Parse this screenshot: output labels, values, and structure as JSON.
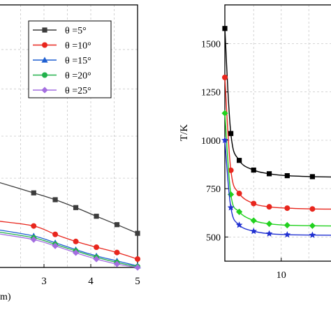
{
  "chart_data": [
    {
      "type": "line",
      "title": "",
      "xlabel": "m)",
      "ylabel": "",
      "xlim": [
        2.0,
        5.0
      ],
      "ylim": [
        0,
        100
      ],
      "x_ticks": [
        3,
        4,
        5
      ],
      "y_ticks": [],
      "grid": true,
      "legend_position": "top-right",
      "series": [
        {
          "name": "θ =5°",
          "color": "#3c3c3c",
          "marker": "square",
          "x": [
            2.0,
            2.78,
            3.24,
            3.68,
            4.12,
            4.56,
            5.0
          ],
          "y": [
            32.6,
            28.4,
            25.8,
            22.8,
            19.5,
            16.3,
            13.0
          ]
        },
        {
          "name": "θ =10°",
          "color": "#e8261d",
          "marker": "circle",
          "x": [
            2.0,
            2.78,
            3.24,
            3.68,
            4.12,
            4.56,
            5.0
          ],
          "y": [
            17.7,
            15.8,
            12.6,
            9.9,
            7.7,
            5.7,
            3.2
          ]
        },
        {
          "name": "θ =15°",
          "color": "#1f5fd1",
          "marker": "triangle",
          "x": [
            2.0,
            2.78,
            3.24,
            3.68,
            4.12,
            4.56,
            5.0
          ],
          "y": [
            14.4,
            12.0,
            9.4,
            6.8,
            4.4,
            2.5,
            0.6
          ]
        },
        {
          "name": "θ =20°",
          "color": "#22b14c",
          "marker": "circle",
          "x": [
            2.0,
            2.78,
            3.24,
            3.68,
            4.12,
            4.56,
            5.0
          ],
          "y": [
            13.6,
            11.3,
            8.8,
            6.3,
            3.9,
            1.9,
            0.3
          ]
        },
        {
          "name": "θ =25°",
          "color": "#a46ee0",
          "marker": "diamond",
          "x": [
            2.0,
            2.78,
            3.24,
            3.68,
            4.12,
            4.56,
            5.0
          ],
          "y": [
            12.9,
            10.6,
            8.2,
            5.6,
            3.2,
            1.3,
            0.0
          ]
        }
      ]
    },
    {
      "type": "line",
      "title": "",
      "xlabel": "",
      "ylabel": "T/K",
      "xlim": [
        5.3,
        14.5
      ],
      "ylim": [
        375,
        1700
      ],
      "x_ticks": [
        10
      ],
      "y_ticks": [
        500,
        750,
        1000,
        1250,
        1500
      ],
      "grid": true,
      "series": [
        {
          "name": "",
          "color": "#000000",
          "marker": "square",
          "x": [
            5.3,
            5.8,
            6.5,
            7.7,
            9.0,
            10.5,
            12.6,
            14.5
          ],
          "y": [
            1578,
            1035,
            896,
            846,
            827,
            817,
            812,
            810
          ]
        },
        {
          "name": "",
          "color": "#e8261d",
          "marker": "circle",
          "x": [
            5.3,
            5.8,
            6.5,
            7.7,
            9.0,
            10.5,
            12.6,
            14.5
          ],
          "y": [
            1325,
            845,
            725,
            673,
            656,
            649,
            645,
            644
          ]
        },
        {
          "name": "",
          "color": "#22d11f",
          "marker": "diamond",
          "x": [
            5.3,
            5.8,
            6.5,
            7.7,
            9.0,
            10.5,
            12.6,
            14.5
          ],
          "y": [
            1140,
            720,
            630,
            585,
            568,
            561,
            558,
            557
          ]
        },
        {
          "name": "",
          "color": "#1f2fd1",
          "marker": "star",
          "x": [
            5.3,
            5.8,
            6.5,
            7.7,
            9.0,
            10.5,
            12.6,
            14.5
          ],
          "y": [
            1000,
            652,
            562,
            530,
            517,
            512,
            510,
            509
          ]
        }
      ]
    }
  ]
}
